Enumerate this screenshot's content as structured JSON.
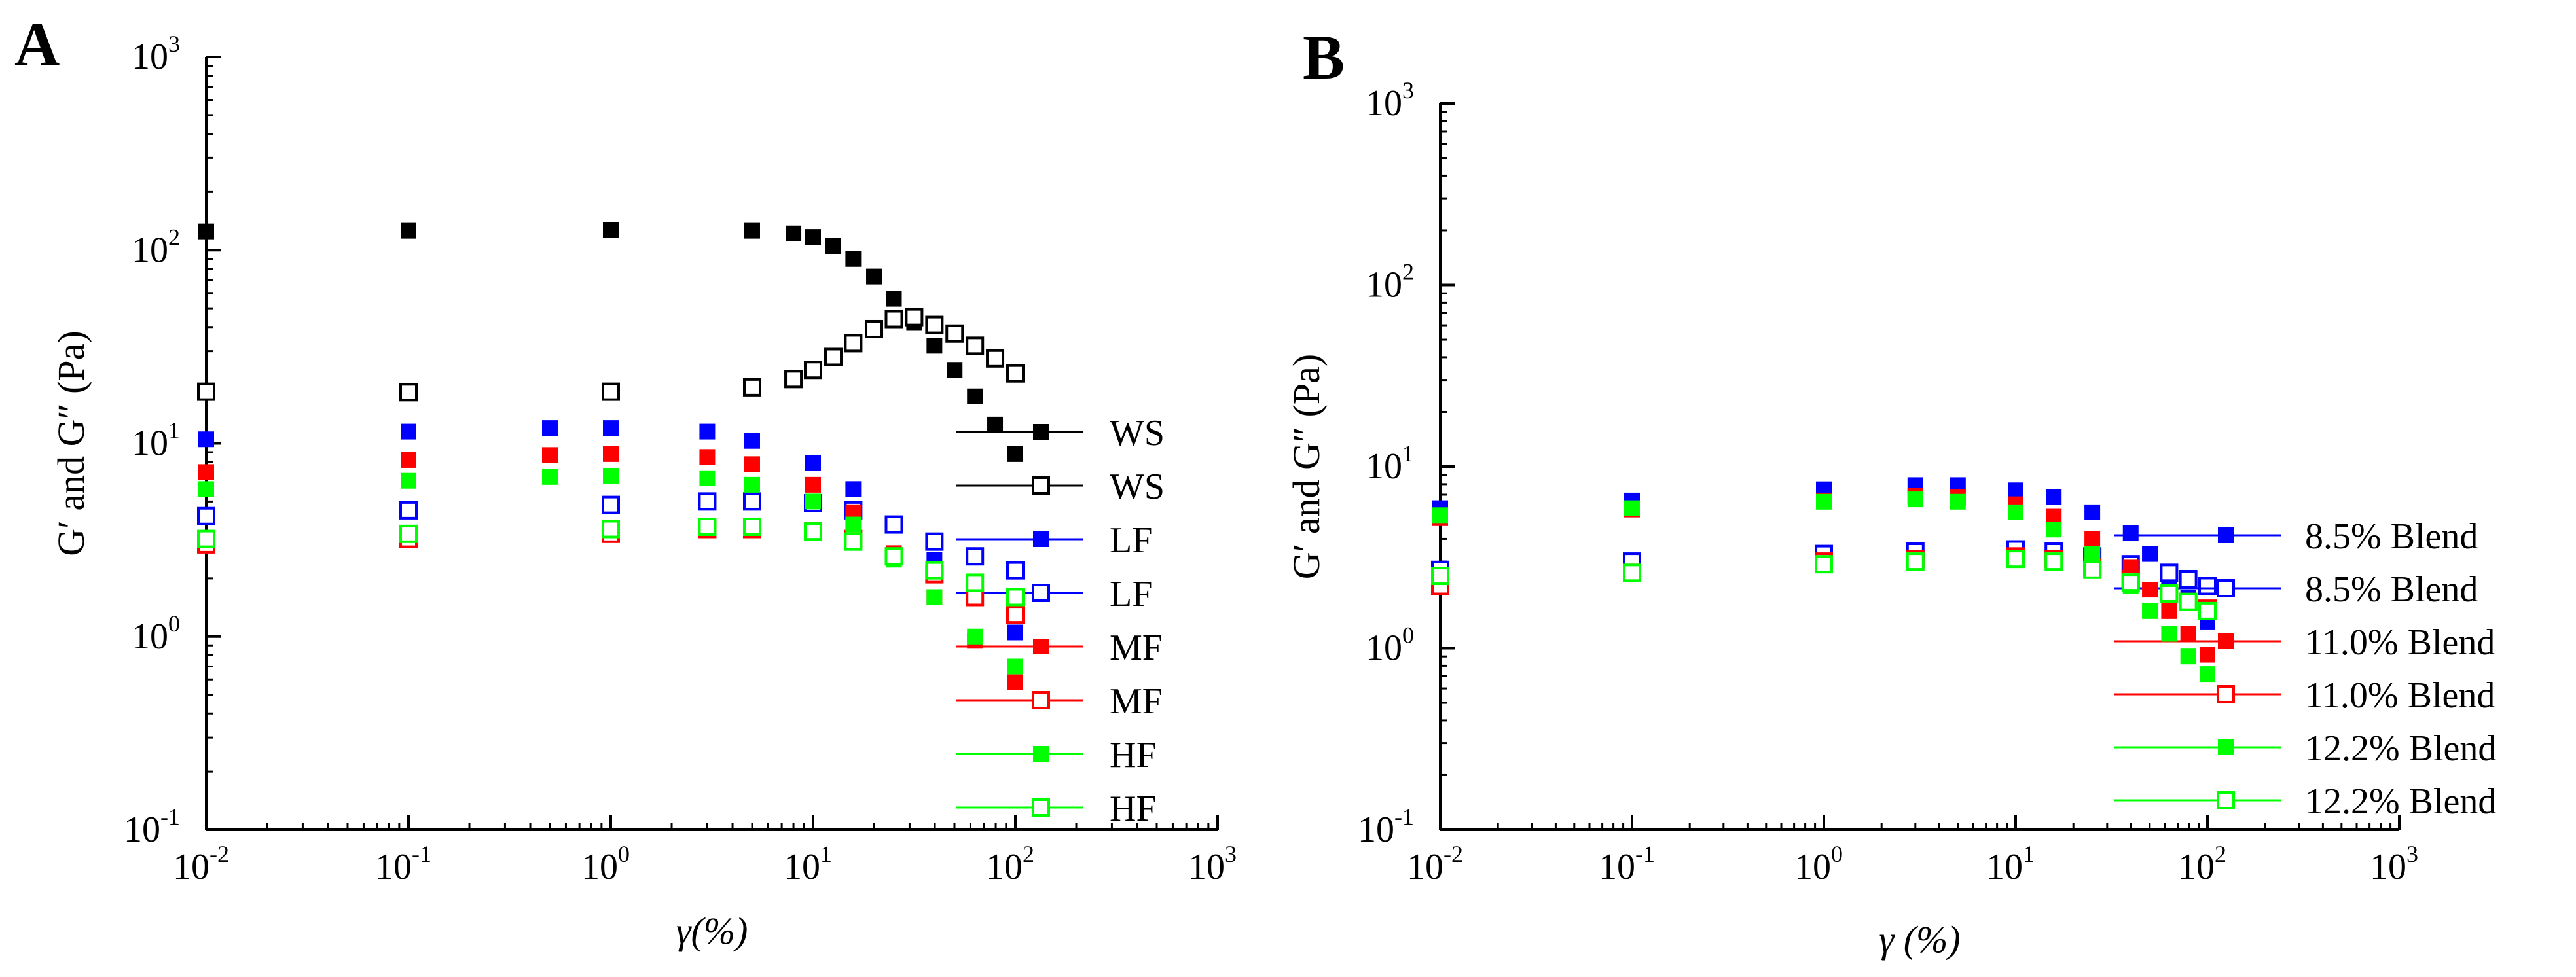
{
  "chart_data": [
    {
      "type": "scatter",
      "panel_label": "A",
      "title": "",
      "xlabel": "γ(%)",
      "ylabel": "G′ and G″ (Pa)",
      "xscale": "log",
      "yscale": "log",
      "xlim": [
        0.01,
        1000
      ],
      "ylim": [
        0.1,
        1000
      ],
      "xticks": [
        0.01,
        0.1,
        1,
        10,
        100,
        1000
      ],
      "yticks": [
        0.1,
        1,
        10,
        100,
        1000
      ],
      "xtick_labels": [
        {
          "base": "10",
          "exp": "-2"
        },
        {
          "base": "10",
          "exp": "-1"
        },
        {
          "base": "10",
          "exp": "0"
        },
        {
          "base": "10",
          "exp": "1"
        },
        {
          "base": "10",
          "exp": "2"
        },
        {
          "base": "10",
          "exp": "3"
        }
      ],
      "ytick_labels": [
        {
          "base": "10",
          "exp": "-1"
        },
        {
          "base": "10",
          "exp": "0"
        },
        {
          "base": "10",
          "exp": "1"
        },
        {
          "base": "10",
          "exp": "2"
        },
        {
          "base": "10",
          "exp": "3"
        }
      ],
      "legend_position": "right",
      "series": [
        {
          "name": "WS",
          "color": "#000000",
          "marker": "filled-square",
          "x": [
            0.01,
            0.1,
            1,
            5,
            8,
            10,
            12.6,
            15.8,
            20,
            25.1,
            31.6,
            39.8,
            50.1,
            63.1,
            79.4,
            100
          ],
          "y": [
            125,
            126,
            127,
            126,
            122,
            117,
            105,
            90,
            73,
            56,
            42,
            32,
            24,
            17.5,
            12.5,
            8.8
          ]
        },
        {
          "name": "WS",
          "color": "#000000",
          "marker": "open-square",
          "x": [
            0.01,
            0.1,
            1,
            5,
            8,
            10,
            12.6,
            15.8,
            20,
            25.1,
            31.6,
            39.8,
            50.1,
            63.1,
            79.4,
            100
          ],
          "y": [
            18.5,
            18.4,
            18.5,
            19.5,
            21.5,
            24,
            28,
            33,
            39,
            44,
            45,
            41,
            37,
            32,
            27.5,
            23
          ]
        },
        {
          "name": "LF",
          "color": "#0000ff",
          "marker": "filled-square",
          "x": [
            0.01,
            0.1,
            0.5,
            1,
            3,
            5,
            10,
            15.8,
            25.1,
            39.8,
            63.1,
            100
          ],
          "y": [
            10.5,
            11.5,
            12,
            12,
            11.5,
            10.3,
            7.9,
            5.8,
            3.8,
            2.5,
            1.6,
            1.05
          ]
        },
        {
          "name": "LF",
          "color": "#0000ff",
          "marker": "open-square",
          "x": [
            0.01,
            0.1,
            1,
            3,
            5,
            10,
            15.8,
            25.1,
            39.8,
            63.1,
            100
          ],
          "y": [
            4.2,
            4.5,
            4.8,
            5,
            5,
            4.9,
            4.5,
            3.8,
            3.1,
            2.6,
            2.2
          ]
        },
        {
          "name": "MF",
          "color": "#ff0000",
          "marker": "filled-square",
          "x": [
            0.01,
            0.1,
            0.5,
            1,
            3,
            5,
            10,
            15.8,
            25.1,
            39.8,
            63.1,
            100
          ],
          "y": [
            7.1,
            8.2,
            8.7,
            8.8,
            8.5,
            7.8,
            6.1,
            4.4,
            2.7,
            1.6,
            0.95,
            0.58
          ]
        },
        {
          "name": "MF",
          "color": "#ff0000",
          "marker": "open-square",
          "x": [
            0.01,
            0.1,
            1,
            3,
            5,
            10,
            15.8,
            25.1,
            39.8,
            63.1,
            100
          ],
          "y": [
            3.0,
            3.2,
            3.4,
            3.6,
            3.6,
            3.5,
            3.2,
            2.6,
            2.1,
            1.6,
            1.3
          ]
        },
        {
          "name": "HF",
          "color": "#00ff00",
          "marker": "filled-square",
          "x": [
            0.01,
            0.1,
            0.5,
            1,
            3,
            5,
            10,
            15.8,
            25.1,
            39.8,
            63.1,
            100
          ],
          "y": [
            5.8,
            6.4,
            6.7,
            6.8,
            6.6,
            6.1,
            5.0,
            3.8,
            2.5,
            1.6,
            1.0,
            0.7
          ]
        },
        {
          "name": "HF",
          "color": "#00ff00",
          "marker": "open-square",
          "x": [
            0.01,
            0.1,
            1,
            3,
            5,
            10,
            15.8,
            25.1,
            39.8,
            63.1,
            100
          ],
          "y": [
            3.2,
            3.4,
            3.6,
            3.7,
            3.7,
            3.5,
            3.1,
            2.6,
            2.2,
            1.9,
            1.6
          ]
        }
      ]
    },
    {
      "type": "scatter",
      "panel_label": "B",
      "title": "",
      "xlabel": "γ (%)",
      "ylabel": "G′ and G″ (Pa)",
      "xscale": "log",
      "yscale": "log",
      "xlim": [
        0.01,
        1000
      ],
      "ylim": [
        0.1,
        1000
      ],
      "xticks": [
        0.01,
        0.1,
        1,
        10,
        100,
        1000
      ],
      "yticks": [
        0.1,
        1,
        10,
        100,
        1000
      ],
      "xtick_labels": [
        {
          "base": "10",
          "exp": "-2"
        },
        {
          "base": "10",
          "exp": "-1"
        },
        {
          "base": "10",
          "exp": "0"
        },
        {
          "base": "10",
          "exp": "1"
        },
        {
          "base": "10",
          "exp": "2"
        },
        {
          "base": "10",
          "exp": "3"
        }
      ],
      "ytick_labels": [
        {
          "base": "10",
          "exp": "-1"
        },
        {
          "base": "10",
          "exp": "0"
        },
        {
          "base": "10",
          "exp": "1"
        },
        {
          "base": "10",
          "exp": "2"
        },
        {
          "base": "10",
          "exp": "3"
        }
      ],
      "legend_position": "right",
      "series": [
        {
          "name": "8.5% Blend",
          "color": "#0000ff",
          "marker": "filled-square",
          "x": [
            0.01,
            0.1,
            1,
            3,
            5,
            10,
            15.8,
            25.1,
            39.8,
            50.1,
            63.1,
            79.4,
            100
          ],
          "y": [
            5.9,
            6.5,
            7.5,
            7.9,
            7.9,
            7.4,
            6.8,
            5.6,
            4.3,
            3.3,
            2.5,
            1.9,
            1.4
          ]
        },
        {
          "name": "8.5% Blend",
          "color": "#0000ff",
          "marker": "open-square",
          "x": [
            0.01,
            0.1,
            1,
            3,
            10,
            15.8,
            25.1,
            39.8,
            63.1,
            79.4,
            100
          ],
          "y": [
            2.7,
            3.0,
            3.3,
            3.4,
            3.5,
            3.4,
            3.2,
            2.9,
            2.6,
            2.4,
            2.2
          ]
        },
        {
          "name": "11.0% Blend",
          "color": "#ff0000",
          "marker": "filled-square",
          "x": [
            0.01,
            0.1,
            1,
            3,
            5,
            10,
            15.8,
            25.1,
            39.8,
            50.1,
            63.1,
            79.4,
            100
          ],
          "y": [
            5.2,
            5.8,
            6.5,
            6.9,
            6.8,
            6.2,
            5.3,
            4.0,
            2.8,
            2.1,
            1.6,
            1.2,
            0.92
          ]
        },
        {
          "name": "11.0% Blend",
          "color": "#ff0000",
          "marker": "open-square",
          "x": [
            0.01,
            0.1,
            1,
            3,
            10,
            15.8,
            25.1,
            39.8,
            63.1,
            79.4,
            100
          ],
          "y": [
            2.2,
            2.6,
            3.0,
            3.1,
            3.2,
            3.1,
            2.8,
            2.4,
            2.0,
            1.8,
            1.65
          ]
        },
        {
          "name": "12.2% Blend",
          "color": "#00ff00",
          "marker": "filled-square",
          "x": [
            0.01,
            0.1,
            1,
            3,
            5,
            10,
            15.8,
            25.1,
            39.8,
            50.1,
            63.1,
            79.4,
            100
          ],
          "y": [
            5.4,
            5.9,
            6.4,
            6.6,
            6.4,
            5.6,
            4.5,
            3.3,
            2.2,
            1.6,
            1.2,
            0.9,
            0.72
          ]
        },
        {
          "name": "12.2% Blend",
          "color": "#00ff00",
          "marker": "open-square",
          "x": [
            0.01,
            0.1,
            1,
            3,
            10,
            15.8,
            25.1,
            39.8,
            63.1,
            79.4,
            100
          ],
          "y": [
            2.5,
            2.6,
            2.9,
            3.0,
            3.1,
            3.0,
            2.7,
            2.3,
            2.0,
            1.8,
            1.6
          ]
        }
      ]
    }
  ]
}
